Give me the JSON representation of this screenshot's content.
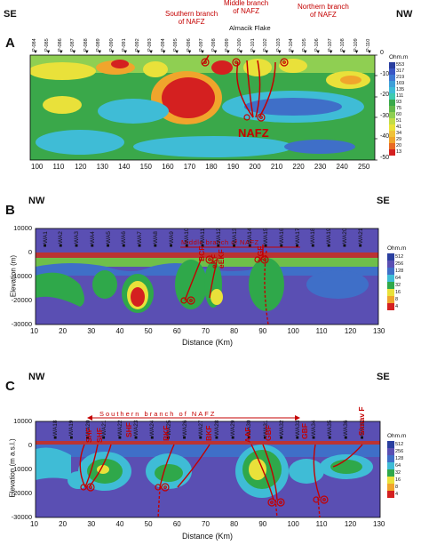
{
  "panel_a": {
    "label": "A",
    "dir_left": "SE",
    "dir_right": "NW",
    "stations": [
      "P-084",
      "P-085",
      "P-086",
      "P-087",
      "P-088",
      "P-089",
      "P-090",
      "P-091",
      "P-092",
      "P-093",
      "P-094",
      "P-095",
      "P-096",
      "P-097",
      "P-098",
      "P-099",
      "P-100",
      "P-101",
      "P-102",
      "P-103",
      "P-104",
      "P-105",
      "P-106",
      "P-107",
      "P-108",
      "P-109",
      "P-110"
    ],
    "x_ticks": [
      "100",
      "110",
      "120",
      "130",
      "140",
      "150",
      "160",
      "170",
      "180",
      "190",
      "200",
      "210",
      "220",
      "230",
      "240",
      "250"
    ],
    "y_ticks": [
      "0",
      "-10",
      "-20",
      "-30",
      "-40",
      "-50"
    ],
    "annotations": {
      "middle": "Middle branch\nof NAFZ",
      "southern": "Southern branch\nof NAFZ",
      "northern": "Northern branch\nof NAFZ",
      "flake": "Almacik Flake",
      "nafz": "NAFZ"
    },
    "legend_title": "Ohm.m",
    "legend_values": [
      "553",
      "317",
      "219",
      "169",
      "135",
      "111",
      "93",
      "75",
      "60",
      "51",
      "41",
      "34",
      "29",
      "20",
      "13"
    ]
  },
  "panel_b": {
    "label": "B",
    "dir_left": "NW",
    "dir_right": "SE",
    "banner": "Middle branch of NAFZ",
    "stations": [
      "WA1",
      "WA2",
      "WA3",
      "WA4",
      "WA5",
      "WA6",
      "WA7",
      "WA8",
      "WA9",
      "WA10",
      "WA11",
      "WA12",
      "WA13",
      "WA14",
      "WA15",
      "WA16",
      "WA17",
      "WA18",
      "WA19",
      "WA20",
      "WA21"
    ],
    "faults": [
      "BCF",
      "eKF",
      "eEKF",
      "YGF"
    ],
    "y_label": "Elevation (m)",
    "x_label": "Distance (Km)",
    "y_ticks": [
      "10000",
      "0",
      "-10000",
      "-20000",
      "-30000"
    ],
    "x_ticks": [
      "10",
      "20",
      "30",
      "40",
      "50",
      "60",
      "70",
      "80",
      "90",
      "100",
      "110",
      "120",
      "130"
    ],
    "legend_title": "Ohm.m",
    "legend_values": [
      "512",
      "256",
      "128",
      "64",
      "32",
      "16",
      "8",
      "4"
    ]
  },
  "panel_c": {
    "label": "C",
    "dir_left": "NW",
    "dir_right": "SE",
    "banner": "Southern branch of NAFZ",
    "stations": [
      "WA18",
      "WA19",
      "WA20",
      "WA21",
      "WA22",
      "WA23",
      "WA24",
      "WA25",
      "WA26",
      "WA27",
      "WA28",
      "WA29",
      "WA30",
      "WA31",
      "WA32",
      "WA33",
      "WA34",
      "WA35",
      "WA36",
      "WA37"
    ],
    "faults": [
      "SHF",
      "SHF",
      "SHF",
      "BKF",
      "BKF",
      "AAF",
      "GBF",
      "GBF",
      "Simav F"
    ],
    "y_label": "Elevation (m a.s.l.)",
    "x_label": "Distance (Km)",
    "y_ticks": [
      "10000",
      "0",
      "-10000",
      "-20000",
      "-30000"
    ],
    "x_ticks": [
      "10",
      "20",
      "30",
      "40",
      "50",
      "60",
      "70",
      "80",
      "90",
      "100",
      "110",
      "120",
      "130"
    ],
    "legend_title": "Ohm.m",
    "legend_values": [
      "512",
      "256",
      "128",
      "64",
      "32",
      "16",
      "8",
      "4"
    ]
  },
  "colors": {
    "fault": "#c40000",
    "bg_resistive": "#4a4fb0",
    "mid": "#2fa84a",
    "conductive": "#d42020"
  }
}
